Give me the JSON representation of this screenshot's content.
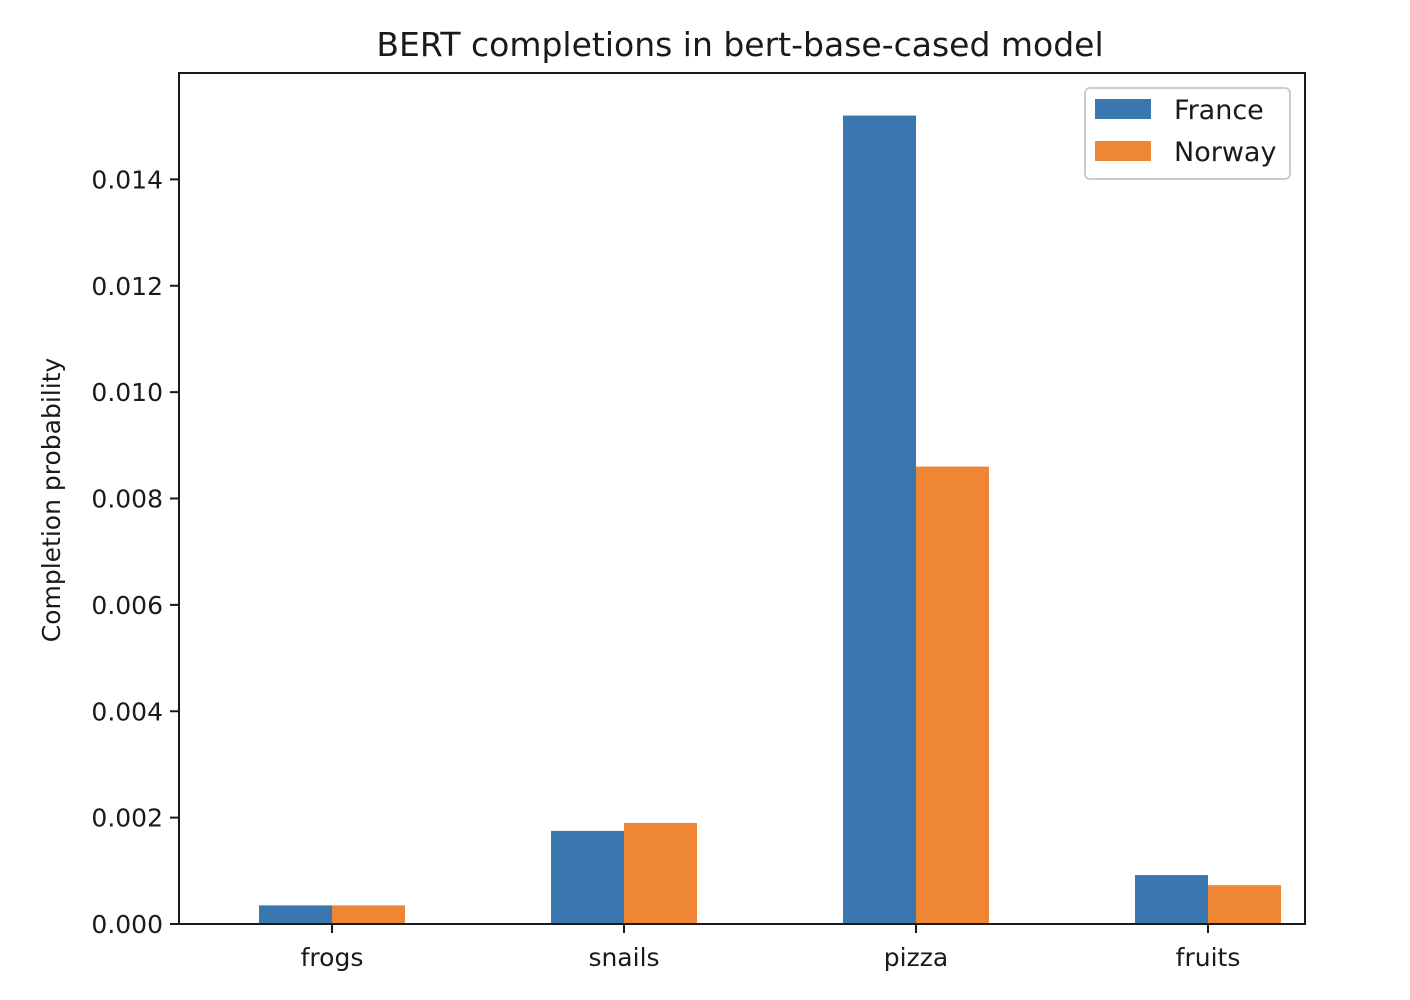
{
  "chart_data": {
    "type": "bar",
    "title": "BERT completions in bert-base-cased model",
    "xlabel": "",
    "ylabel": "Completion probability",
    "categories": [
      "frogs",
      "snails",
      "pizza",
      "fruits"
    ],
    "series": [
      {
        "name": "France",
        "color": "#3a76af",
        "values": [
          0.00035,
          0.00175,
          0.0152,
          0.00092
        ]
      },
      {
        "name": "Norway",
        "color": "#ef8636",
        "values": [
          0.00035,
          0.0019,
          0.0086,
          0.00073
        ]
      }
    ],
    "ylim": [
      0,
      0.016
    ],
    "yticks": [
      "0.000",
      "0.002",
      "0.004",
      "0.006",
      "0.008",
      "0.010",
      "0.012",
      "0.014"
    ],
    "ytick_values": [
      0,
      0.002,
      0.004,
      0.006,
      0.008,
      0.01,
      0.012,
      0.014
    ],
    "grid": false,
    "legend": "top-right"
  }
}
